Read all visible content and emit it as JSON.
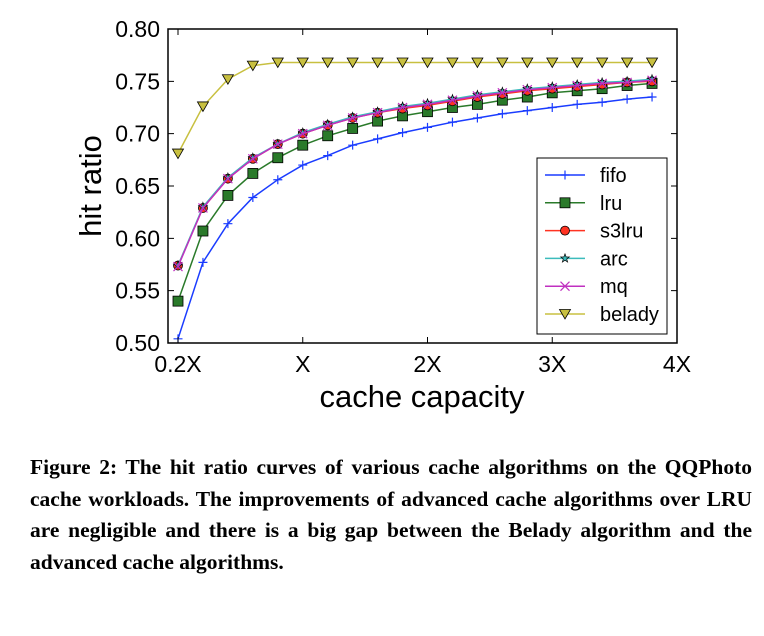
{
  "chart_data": {
    "type": "line",
    "title": "",
    "xlabel": "cache capacity",
    "ylabel": "hit ratio",
    "x": [
      0,
      1,
      2,
      3,
      4,
      5,
      6,
      7,
      8,
      9,
      10,
      11,
      12,
      13,
      14,
      15,
      16,
      17,
      18,
      19
    ],
    "xlim": [
      0,
      20
    ],
    "xticks": [
      0,
      5,
      10,
      15,
      20
    ],
    "xtick_labels": [
      "0.2X",
      "X",
      "2X",
      "3X",
      "4X"
    ],
    "ylim": [
      0.5,
      0.8
    ],
    "yticks": [
      0.5,
      0.55,
      0.6,
      0.65,
      0.7,
      0.75,
      0.8
    ],
    "ytick_labels": [
      "0.50",
      "0.55",
      "0.60",
      "0.65",
      "0.70",
      "0.75",
      "0.80"
    ],
    "grid": false,
    "legend_position": "lower-right",
    "series": [
      {
        "name": "fifo",
        "color": "#1a3cff",
        "marker": "plus",
        "values": [
          0.504,
          0.577,
          0.614,
          0.639,
          0.656,
          0.67,
          0.679,
          0.689,
          0.695,
          0.701,
          0.706,
          0.711,
          0.715,
          0.719,
          0.722,
          0.725,
          0.728,
          0.73,
          0.733,
          0.735
        ]
      },
      {
        "name": "lru",
        "color": "#2a7a2a",
        "marker": "square",
        "values": [
          0.54,
          0.607,
          0.641,
          0.662,
          0.677,
          0.689,
          0.698,
          0.705,
          0.712,
          0.717,
          0.721,
          0.725,
          0.728,
          0.732,
          0.735,
          0.739,
          0.741,
          0.743,
          0.746,
          0.748
        ]
      },
      {
        "name": "s3lru",
        "color": "#ff3322",
        "marker": "circle",
        "values": [
          0.574,
          0.629,
          0.657,
          0.676,
          0.69,
          0.7,
          0.708,
          0.715,
          0.72,
          0.724,
          0.727,
          0.731,
          0.735,
          0.738,
          0.741,
          0.743,
          0.745,
          0.747,
          0.749,
          0.75
        ]
      },
      {
        "name": "arc",
        "color": "#3cbcbc",
        "marker": "star",
        "values": [
          0.574,
          0.63,
          0.658,
          0.677,
          0.69,
          0.701,
          0.709,
          0.716,
          0.721,
          0.726,
          0.729,
          0.733,
          0.737,
          0.74,
          0.743,
          0.745,
          0.747,
          0.749,
          0.75,
          0.752
        ]
      },
      {
        "name": "mq",
        "color": "#c030c0",
        "marker": "x",
        "values": [
          0.573,
          0.629,
          0.657,
          0.676,
          0.69,
          0.7,
          0.708,
          0.715,
          0.72,
          0.725,
          0.728,
          0.732,
          0.736,
          0.739,
          0.742,
          0.744,
          0.746,
          0.748,
          0.749,
          0.751
        ]
      },
      {
        "name": "belady",
        "color": "#c8c040",
        "marker": "triangle-down",
        "values": [
          0.681,
          0.726,
          0.752,
          0.765,
          0.768,
          0.768,
          0.768,
          0.768,
          0.768,
          0.768,
          0.768,
          0.768,
          0.768,
          0.768,
          0.768,
          0.768,
          0.768,
          0.768,
          0.768,
          0.768
        ]
      }
    ]
  },
  "caption": "Figure 2: The hit ratio curves of various cache algorithms on the QQPhoto cache workloads. The improvements of advanced cache algorithms over LRU are negligible and there is a big gap between the Belady algorithm and the advanced cache algorithms."
}
